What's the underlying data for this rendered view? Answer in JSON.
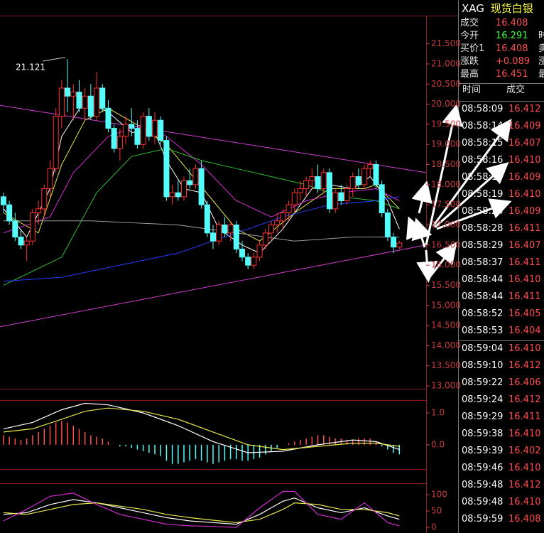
{
  "chart_data": [
    {
      "type": "candlestick",
      "xlim": [
        -0.6,
        72.6
      ],
      "ylim": [
        12.93,
        22.2
      ],
      "up_color": "#ff3232",
      "down_color": "#54fcfc",
      "open": [
        17.7,
        17.5,
        17.1,
        16.7,
        16.5,
        16.6,
        17.3,
        17.4,
        17.9,
        18.4,
        19.7,
        20.4,
        20.2,
        20.3,
        19.9,
        20.2,
        19.7,
        20.4,
        19.9,
        19.4,
        18.9,
        19.2,
        19.5,
        19.4,
        19.0,
        19.7,
        19.2,
        19.6,
        19.1,
        17.7,
        17.8,
        17.7,
        18.1,
        18.0,
        18.4,
        17.5,
        16.8,
        16.6,
        17.0,
        16.8,
        17.0,
        16.4,
        16.2,
        16.0,
        16.2,
        16.5,
        16.8,
        17.0,
        17.1,
        17.3,
        17.5,
        17.8,
        17.9,
        18.1,
        18.2,
        17.9,
        18.3,
        17.4,
        17.8,
        17.6,
        17.9,
        18.2,
        18.0,
        18.4,
        18.5,
        18.0,
        17.3,
        16.7,
        16.45
      ],
      "high": [
        17.8,
        17.6,
        17.3,
        16.9,
        16.7,
        17.4,
        17.6,
        18.0,
        18.6,
        19.9,
        20.6,
        21.121,
        20.5,
        20.6,
        20.4,
        20.5,
        20.8,
        20.5,
        20.1,
        19.5,
        19.4,
        19.7,
        19.9,
        19.6,
        19.8,
        19.9,
        19.8,
        19.7,
        19.2,
        18.0,
        18.1,
        18.2,
        18.4,
        18.5,
        18.6,
        17.6,
        17.0,
        17.1,
        17.2,
        17.1,
        17.1,
        16.6,
        16.3,
        16.3,
        16.6,
        16.9,
        17.1,
        17.3,
        17.4,
        17.6,
        17.9,
        18.1,
        18.2,
        18.4,
        18.5,
        18.4,
        18.4,
        17.9,
        18.0,
        18.0,
        18.3,
        18.4,
        18.5,
        18.6,
        18.6,
        18.1,
        17.4,
        16.8,
        16.6
      ],
      "low": [
        17.3,
        17.0,
        16.6,
        16.4,
        16.1,
        16.5,
        17.0,
        17.2,
        17.7,
        18.3,
        19.4,
        19.8,
        19.6,
        19.8,
        19.6,
        19.6,
        19.6,
        19.8,
        19.3,
        18.8,
        18.6,
        19.0,
        19.2,
        18.9,
        18.9,
        19.1,
        19.0,
        19.0,
        17.6,
        17.5,
        17.6,
        17.6,
        17.9,
        17.9,
        17.4,
        16.7,
        16.4,
        16.5,
        16.7,
        16.6,
        16.3,
        16.1,
        15.9,
        15.9,
        16.1,
        16.4,
        16.6,
        16.8,
        16.9,
        17.1,
        17.3,
        17.6,
        17.7,
        17.9,
        17.8,
        17.8,
        17.3,
        17.3,
        17.5,
        17.5,
        17.7,
        17.9,
        17.9,
        18.2,
        17.9,
        17.2,
        16.6,
        16.3,
        16.4
      ],
      "close": [
        17.5,
        17.1,
        16.7,
        16.5,
        16.6,
        17.3,
        17.4,
        17.9,
        18.4,
        19.7,
        20.4,
        20.2,
        20.3,
        19.9,
        20.2,
        19.7,
        20.4,
        19.9,
        19.4,
        18.9,
        19.2,
        19.5,
        19.4,
        19.0,
        19.7,
        19.2,
        19.6,
        19.1,
        17.7,
        17.8,
        17.7,
        18.1,
        18.0,
        18.4,
        17.5,
        16.8,
        16.6,
        17.0,
        16.8,
        17.0,
        16.4,
        16.2,
        16.0,
        16.2,
        16.5,
        16.8,
        17.0,
        17.1,
        17.3,
        17.5,
        17.8,
        17.9,
        18.1,
        18.2,
        17.9,
        18.3,
        17.4,
        17.8,
        17.6,
        17.9,
        18.2,
        18.0,
        18.4,
        18.5,
        18.0,
        17.3,
        16.7,
        16.45,
        16.55
      ],
      "series": [
        {
          "color": "#ffffff",
          "x": [
            0,
            4,
            8,
            10,
            14,
            18,
            22,
            26,
            28,
            31,
            34,
            37,
            41,
            44,
            48,
            53,
            56,
            60,
            63,
            66,
            68
          ],
          "values": [
            17.4,
            16.7,
            17.9,
            19.2,
            20.1,
            19.8,
            19.3,
            19.3,
            18.6,
            17.9,
            17.8,
            16.9,
            16.5,
            16.3,
            16.9,
            17.9,
            18.0,
            17.9,
            18.2,
            17.6,
            16.9
          ]
        },
        {
          "color": "#e8e84a",
          "x": [
            0,
            6,
            10,
            14,
            18,
            24,
            28,
            32,
            36,
            40,
            44,
            50,
            56,
            62,
            64,
            68
          ],
          "values": [
            17.3,
            16.8,
            18.5,
            19.6,
            19.9,
            19.4,
            19.0,
            18.3,
            17.6,
            16.9,
            16.6,
            17.3,
            17.9,
            17.9,
            18.0,
            17.4
          ]
        },
        {
          "color": "#d02cd0",
          "x": [
            0,
            8,
            12,
            18,
            24,
            28,
            34,
            40,
            46,
            52,
            58,
            64,
            68
          ],
          "values": [
            16.8,
            17.2,
            18.3,
            19.2,
            19.5,
            19.2,
            18.5,
            17.6,
            17.2,
            17.6,
            17.8,
            17.9,
            17.6
          ]
        },
        {
          "color": "#30c030",
          "x": [
            0,
            10,
            16,
            22,
            28,
            34,
            40,
            46,
            52,
            58,
            64,
            68
          ],
          "values": [
            15.5,
            16.2,
            17.8,
            18.7,
            18.9,
            18.6,
            18.4,
            18.2,
            18.0,
            17.7,
            17.6,
            17.4
          ]
        },
        {
          "color": "#2040ff",
          "x": [
            0,
            10,
            20,
            30,
            40,
            48,
            56,
            64,
            68
          ],
          "values": [
            15.6,
            15.7,
            16.0,
            16.3,
            16.8,
            17.2,
            17.5,
            17.6,
            17.7
          ]
        },
        {
          "color": "#9a9a9a",
          "x": [
            0,
            15,
            30,
            40,
            50,
            60,
            68
          ],
          "values": [
            17.1,
            17.1,
            17.0,
            16.8,
            16.6,
            16.7,
            16.7
          ]
        }
      ],
      "trendlines": [
        {
          "color": "#d040d0",
          "x": [
            -0.6,
            72.6
          ],
          "values": [
            19.97,
            18.3
          ]
        },
        {
          "color": "#d040d0",
          "x": [
            -0.6,
            72.6
          ],
          "values": [
            14.47,
            16.5
          ]
        }
      ],
      "yticks": [
        {
          "value": 21.5,
          "label": "21.500"
        },
        {
          "value": 21.0,
          "label": "21.000"
        },
        {
          "value": 20.5,
          "label": "20.500"
        },
        {
          "value": 20.0,
          "label": "20.000"
        },
        {
          "value": 19.5,
          "label": "19.500"
        },
        {
          "value": 19.0,
          "label": "19.000"
        },
        {
          "value": 18.5,
          "label": "18.500"
        },
        {
          "value": 18.0,
          "label": "18.000"
        },
        {
          "value": 17.5,
          "label": "17.500"
        },
        {
          "value": 17.0,
          "label": "17.000"
        },
        {
          "value": 16.5,
          "label": "16.500"
        },
        {
          "value": 16.0,
          "label": "16.000"
        },
        {
          "value": 15.5,
          "label": "15.500"
        },
        {
          "value": 15.0,
          "label": "15.000"
        },
        {
          "value": 14.5,
          "label": "14.500"
        },
        {
          "value": 14.0,
          "label": "14.000"
        },
        {
          "value": 13.5,
          "label": "13.500"
        },
        {
          "value": 13.0,
          "label": "13.000"
        }
      ]
    },
    {
      "type": "macd",
      "xlim": [
        -0.6,
        72.6
      ],
      "ylim": [
        -0.76,
        1.4
      ],
      "up_color": "#ff5050",
      "down_color": "#54fcfc",
      "histogram": [
        0.3,
        0.25,
        0.2,
        0.15,
        0.2,
        0.3,
        0.4,
        0.5,
        0.6,
        0.7,
        0.75,
        0.7,
        0.6,
        0.5,
        0.4,
        0.3,
        0.25,
        0.2,
        0.1,
        0.0,
        -0.05,
        -0.05,
        -0.1,
        -0.15,
        -0.2,
        -0.25,
        -0.3,
        -0.35,
        -0.5,
        -0.6,
        -0.6,
        -0.55,
        -0.5,
        -0.45,
        -0.5,
        -0.55,
        -0.6,
        -0.55,
        -0.5,
        -0.45,
        -0.45,
        -0.5,
        -0.5,
        -0.45,
        -0.4,
        -0.3,
        -0.2,
        -0.1,
        0.0,
        0.05,
        0.1,
        0.15,
        0.2,
        0.25,
        0.3,
        0.3,
        0.25,
        0.2,
        0.2,
        0.15,
        0.15,
        0.2,
        0.2,
        0.2,
        0.1,
        -0.05,
        -0.15,
        -0.25,
        -0.3
      ],
      "series": [
        {
          "color": "#ffffff",
          "x": [
            0,
            5,
            10,
            14,
            18,
            24,
            30,
            36,
            42,
            48,
            54,
            60,
            64,
            68
          ],
          "values": [
            0.5,
            0.7,
            1.1,
            1.3,
            1.25,
            1.0,
            0.6,
            0.1,
            -0.25,
            -0.2,
            0.0,
            0.15,
            0.1,
            -0.15
          ]
        },
        {
          "color": "#e8e84a",
          "x": [
            0,
            5,
            10,
            14,
            18,
            24,
            30,
            36,
            42,
            48,
            54,
            60,
            64,
            68
          ],
          "values": [
            0.4,
            0.5,
            0.8,
            1.05,
            1.15,
            1.05,
            0.8,
            0.4,
            0.0,
            -0.15,
            -0.05,
            0.05,
            0.05,
            -0.05
          ]
        }
      ],
      "yticks": [
        {
          "value": 1.0,
          "label": "1.0"
        },
        {
          "value": 0.0,
          "label": "0.0"
        }
      ]
    },
    {
      "type": "kdj",
      "xlim": [
        -0.6,
        72.6
      ],
      "ylim": [
        -17,
        135
      ],
      "series": [
        {
          "color": "#ffffff",
          "x": [
            0,
            4,
            8,
            12,
            16,
            20,
            24,
            28,
            32,
            36,
            40,
            44,
            48,
            50,
            54,
            58,
            62,
            66,
            68
          ],
          "values": [
            40,
            45,
            70,
            85,
            75,
            60,
            45,
            30,
            20,
            15,
            10,
            40,
            80,
            90,
            60,
            45,
            60,
            35,
            25
          ]
        },
        {
          "color": "#e8e84a",
          "x": [
            0,
            4,
            8,
            12,
            16,
            20,
            24,
            28,
            32,
            36,
            40,
            44,
            48,
            50,
            54,
            58,
            62,
            66,
            68
          ],
          "values": [
            45,
            40,
            55,
            70,
            75,
            65,
            55,
            40,
            30,
            22,
            15,
            25,
            55,
            75,
            70,
            55,
            55,
            45,
            35
          ]
        },
        {
          "color": "#d02cd0",
          "x": [
            0,
            4,
            8,
            12,
            16,
            20,
            24,
            28,
            32,
            36,
            40,
            44,
            48,
            50,
            54,
            58,
            62,
            66,
            68
          ],
          "values": [
            20,
            55,
            95,
            105,
            70,
            40,
            25,
            10,
            5,
            3,
            0,
            60,
            110,
            110,
            40,
            25,
            75,
            15,
            5
          ]
        }
      ],
      "yticks": [
        100,
        50,
        0
      ]
    }
  ],
  "quote": {
    "symbol": "XAG",
    "name": "现货白银",
    "rows": [
      {
        "label": "成交",
        "value": "16.408"
      },
      {
        "label": "今开",
        "value": "16.291"
      },
      {
        "label": "买价1",
        "value": "16.408"
      },
      {
        "label": "涨跌",
        "value": "+0.089"
      },
      {
        "label": "最高",
        "value": "16.451"
      }
    ],
    "cut_labels": [
      "时",
      "卖",
      "涨",
      "最"
    ]
  },
  "trades": {
    "headers": [
      "时间",
      "成交"
    ],
    "groups": [
      [
        [
          "08:58:09",
          "16.412"
        ],
        [
          "08:58:14",
          "16.409"
        ],
        [
          "08:58:15",
          "16.407"
        ],
        [
          "08:58:16",
          "16.410"
        ],
        [
          "08:58:17",
          "16.409"
        ],
        [
          "08:58:19",
          "16.410"
        ],
        [
          "08:58:24",
          "16.409"
        ],
        [
          "08:58:28",
          "16.411"
        ],
        [
          "08:58:29",
          "16.407"
        ],
        [
          "08:58:37",
          "16.411"
        ],
        [
          "08:58:44",
          "16.410"
        ],
        [
          "08:58:44",
          "16.411"
        ],
        [
          "08:58:52",
          "16.405"
        ],
        [
          "08:58:53",
          "16.404"
        ]
      ],
      [
        [
          "08:59:04",
          "16.410"
        ],
        [
          "08:59:10",
          "16.412"
        ],
        [
          "08:59:22",
          "16.406"
        ],
        [
          "08:59:24",
          "16.412"
        ],
        [
          "08:59:29",
          "16.411"
        ],
        [
          "08:59:38",
          "16.410"
        ],
        [
          "08:59:39",
          "16.402"
        ],
        [
          "08:59:46",
          "16.410"
        ],
        [
          "08:59:48",
          "16.412"
        ],
        [
          "08:59:48",
          "16.410"
        ],
        [
          "08:59:59",
          "16.408"
        ]
      ]
    ]
  }
}
